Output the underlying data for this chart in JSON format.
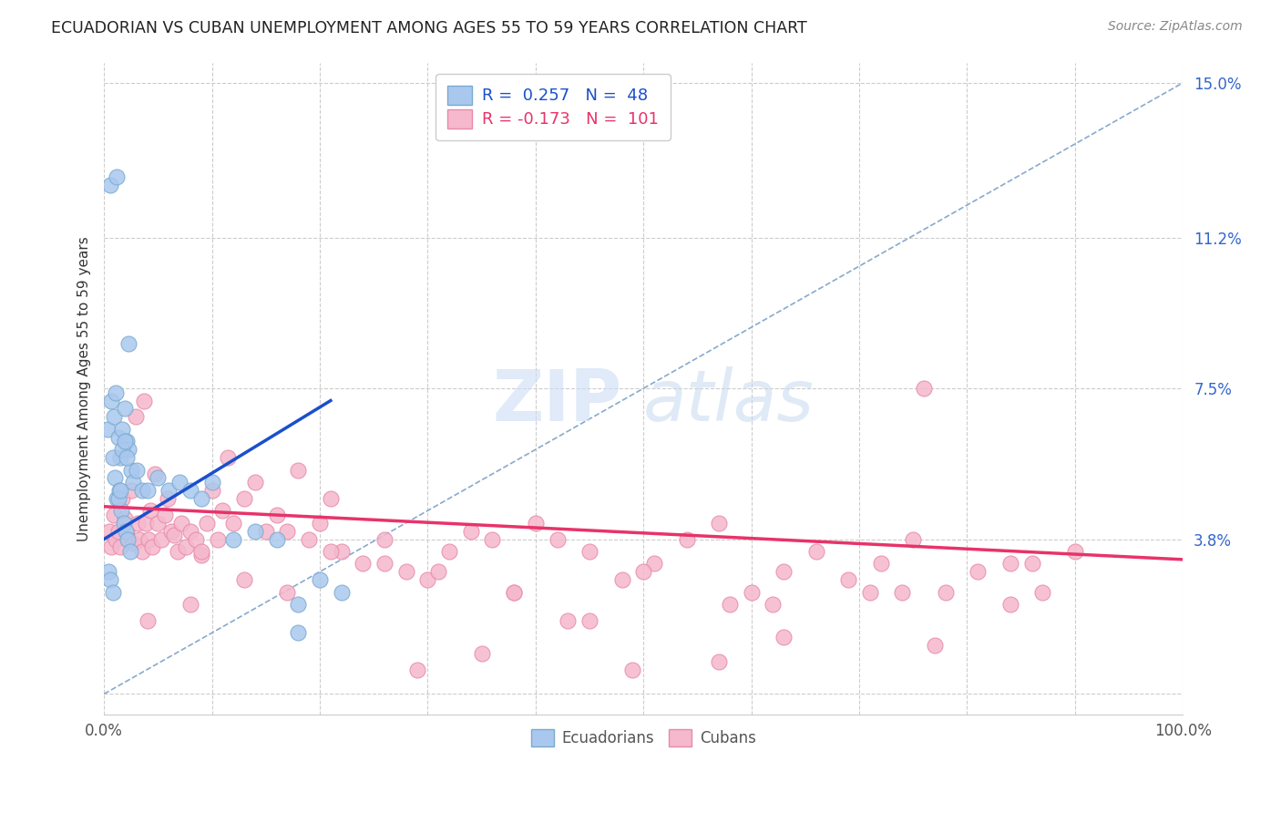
{
  "title": "ECUADORIAN VS CUBAN UNEMPLOYMENT AMONG AGES 55 TO 59 YEARS CORRELATION CHART",
  "source": "Source: ZipAtlas.com",
  "ylabel": "Unemployment Among Ages 55 to 59 years",
  "xlim": [
    0,
    1.0
  ],
  "ylim": [
    -0.005,
    0.155
  ],
  "ytick_vals": [
    0.0,
    0.038,
    0.075,
    0.112,
    0.15
  ],
  "ytick_labels": [
    "",
    "3.8%",
    "7.5%",
    "11.2%",
    "15.0%"
  ],
  "xtick_vals": [
    0.0,
    1.0
  ],
  "xtick_labels": [
    "0.0%",
    "100.0%"
  ],
  "bg_color": "#ffffff",
  "grid_color": "#cccccc",
  "ecu_color": "#aac8ee",
  "ecu_edge_color": "#7aaad0",
  "cuba_color": "#f5b8cc",
  "cuba_edge_color": "#e88aaa",
  "ecu_R": 0.257,
  "ecu_N": 48,
  "cuba_R": -0.173,
  "cuba_N": 101,
  "ecu_line_color": "#1a4fcc",
  "cuba_line_color": "#e8336a",
  "dashed_line_color": "#88aacc",
  "legend_label_ecu": "Ecuadorians",
  "legend_label_cuba": "Cubans",
  "ecu_line_x0": 0.0,
  "ecu_line_x1": 0.21,
  "ecu_line_y0": 0.038,
  "ecu_line_y1": 0.072,
  "cuba_line_x0": 0.0,
  "cuba_line_x1": 1.0,
  "cuba_line_y0": 0.046,
  "cuba_line_y1": 0.033,
  "ecu_scatter_x": [
    0.006,
    0.012,
    0.023,
    0.003,
    0.007,
    0.009,
    0.011,
    0.013,
    0.015,
    0.017,
    0.019,
    0.021,
    0.023,
    0.025,
    0.027,
    0.008,
    0.01,
    0.012,
    0.014,
    0.016,
    0.018,
    0.02,
    0.022,
    0.024,
    0.013,
    0.015,
    0.017,
    0.019,
    0.021,
    0.03,
    0.035,
    0.04,
    0.05,
    0.06,
    0.07,
    0.08,
    0.09,
    0.1,
    0.12,
    0.14,
    0.16,
    0.18,
    0.2,
    0.22,
    0.004,
    0.006,
    0.008,
    0.18
  ],
  "ecu_scatter_y": [
    0.125,
    0.127,
    0.086,
    0.065,
    0.072,
    0.068,
    0.074,
    0.063,
    0.058,
    0.065,
    0.07,
    0.062,
    0.06,
    0.055,
    0.052,
    0.058,
    0.053,
    0.048,
    0.05,
    0.045,
    0.042,
    0.04,
    0.038,
    0.035,
    0.048,
    0.05,
    0.06,
    0.062,
    0.058,
    0.055,
    0.05,
    0.05,
    0.053,
    0.05,
    0.052,
    0.05,
    0.048,
    0.052,
    0.038,
    0.04,
    0.038,
    0.022,
    0.028,
    0.025,
    0.03,
    0.028,
    0.025,
    0.015
  ],
  "cuba_scatter_x": [
    0.005,
    0.007,
    0.009,
    0.011,
    0.013,
    0.015,
    0.017,
    0.019,
    0.021,
    0.023,
    0.025,
    0.027,
    0.029,
    0.031,
    0.033,
    0.035,
    0.037,
    0.039,
    0.041,
    0.043,
    0.045,
    0.047,
    0.05,
    0.053,
    0.056,
    0.059,
    0.062,
    0.065,
    0.068,
    0.072,
    0.076,
    0.08,
    0.085,
    0.09,
    0.095,
    0.1,
    0.105,
    0.11,
    0.115,
    0.12,
    0.13,
    0.14,
    0.15,
    0.16,
    0.17,
    0.18,
    0.19,
    0.2,
    0.21,
    0.22,
    0.24,
    0.26,
    0.28,
    0.3,
    0.32,
    0.34,
    0.36,
    0.38,
    0.4,
    0.42,
    0.45,
    0.48,
    0.51,
    0.54,
    0.57,
    0.6,
    0.63,
    0.66,
    0.69,
    0.72,
    0.75,
    0.78,
    0.81,
    0.84,
    0.87,
    0.9,
    0.13,
    0.26,
    0.38,
    0.5,
    0.62,
    0.74,
    0.86,
    0.04,
    0.08,
    0.17,
    0.31,
    0.45,
    0.58,
    0.71,
    0.84,
    0.29,
    0.43,
    0.57,
    0.21,
    0.35,
    0.49,
    0.63,
    0.77,
    0.09,
    0.76
  ],
  "cuba_scatter_y": [
    0.04,
    0.036,
    0.044,
    0.038,
    0.04,
    0.036,
    0.048,
    0.043,
    0.04,
    0.038,
    0.05,
    0.037,
    0.068,
    0.042,
    0.038,
    0.035,
    0.072,
    0.042,
    0.038,
    0.045,
    0.036,
    0.054,
    0.042,
    0.038,
    0.044,
    0.048,
    0.04,
    0.039,
    0.035,
    0.042,
    0.036,
    0.04,
    0.038,
    0.034,
    0.042,
    0.05,
    0.038,
    0.045,
    0.058,
    0.042,
    0.048,
    0.052,
    0.04,
    0.044,
    0.04,
    0.055,
    0.038,
    0.042,
    0.048,
    0.035,
    0.032,
    0.038,
    0.03,
    0.028,
    0.035,
    0.04,
    0.038,
    0.025,
    0.042,
    0.038,
    0.035,
    0.028,
    0.032,
    0.038,
    0.042,
    0.025,
    0.03,
    0.035,
    0.028,
    0.032,
    0.038,
    0.025,
    0.03,
    0.022,
    0.025,
    0.035,
    0.028,
    0.032,
    0.025,
    0.03,
    0.022,
    0.025,
    0.032,
    0.018,
    0.022,
    0.025,
    0.03,
    0.018,
    0.022,
    0.025,
    0.032,
    0.006,
    0.018,
    0.008,
    0.035,
    0.01,
    0.006,
    0.014,
    0.012,
    0.035,
    0.075
  ]
}
